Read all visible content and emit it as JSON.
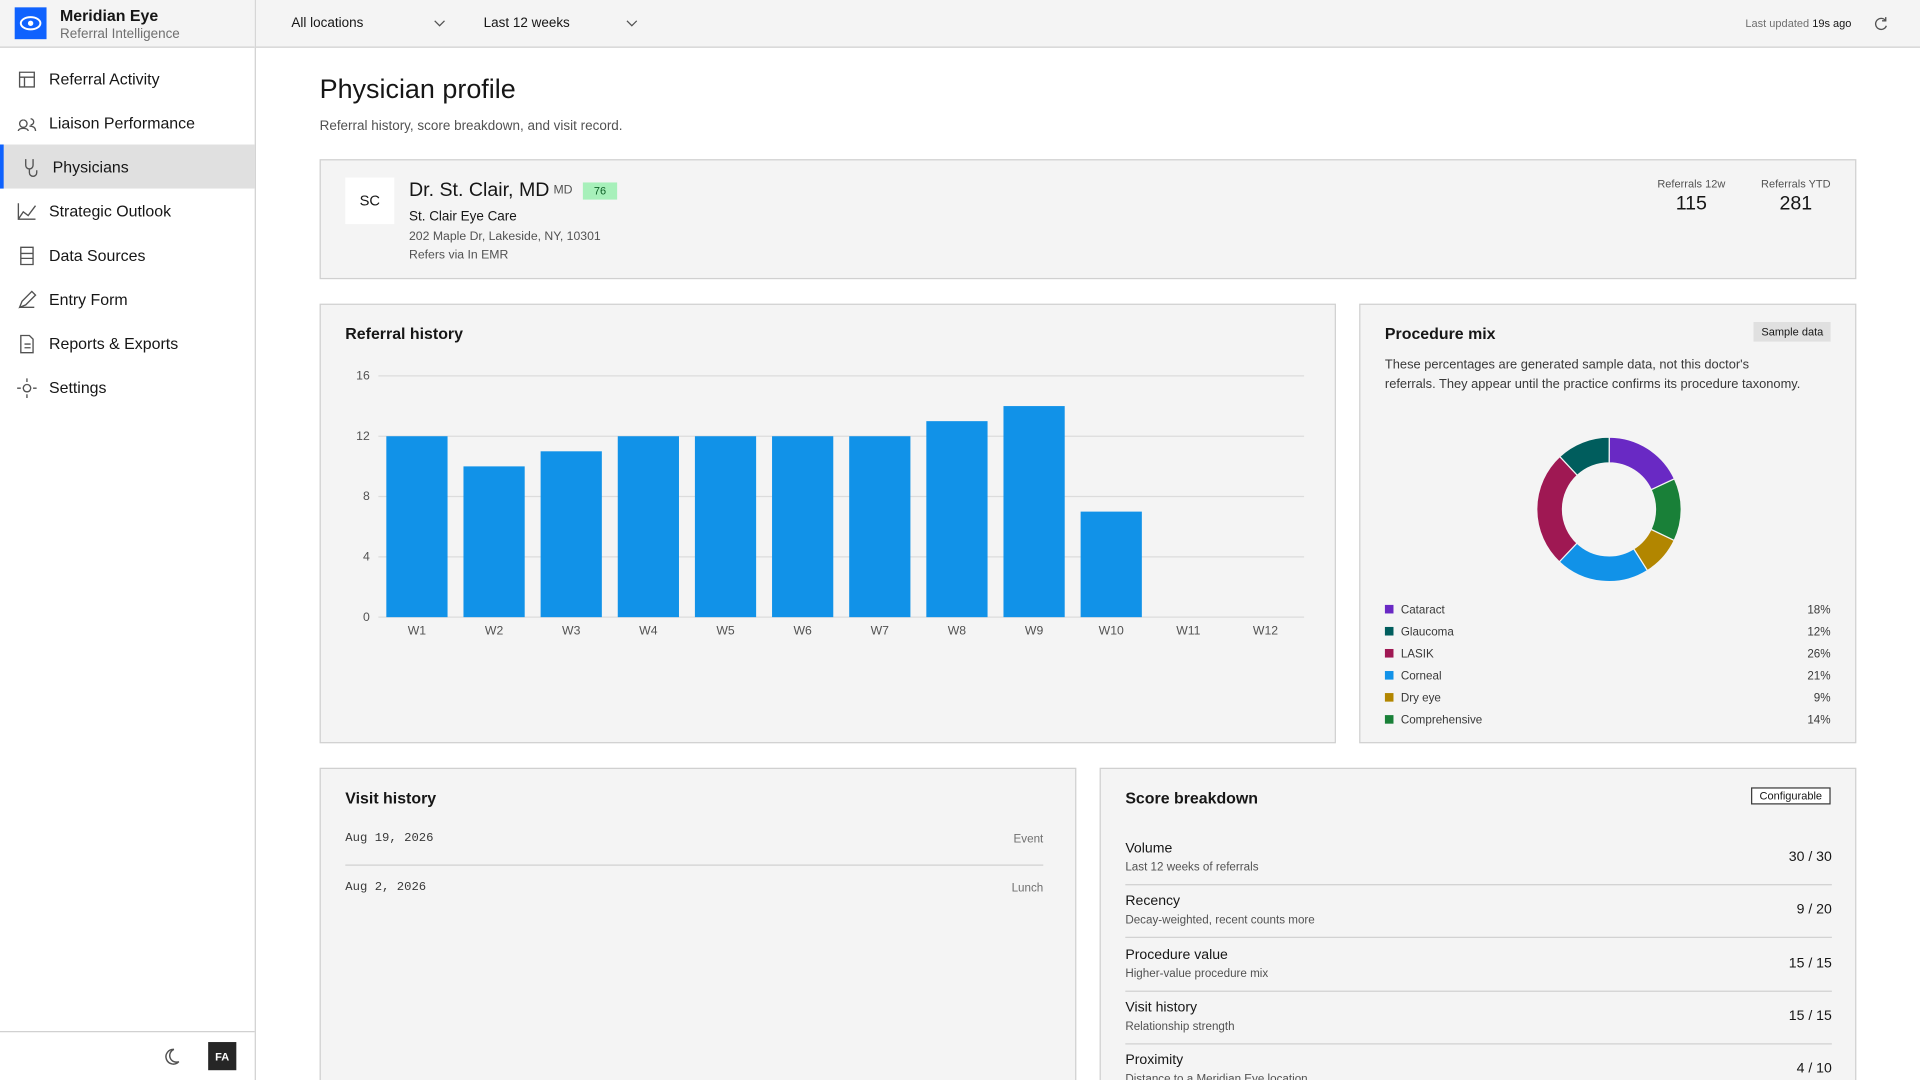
{
  "app": {
    "name": "Meridian Eye",
    "subtitle": "Referral Intelligence"
  },
  "nav": [
    "Referral Activity",
    "Liaison Performance",
    "Physicians",
    "Strategic Outlook",
    "Data Sources",
    "Entry Form",
    "Reports & Exports",
    "Settings"
  ],
  "filters": {
    "location": "All locations",
    "period": "Last 12 weeks",
    "updated_label": "Last updated",
    "updated_value": "19s ago"
  },
  "user_initials": "FA",
  "page": {
    "title": "Physician profile",
    "subtitle": "Referral history, score breakdown, and visit record."
  },
  "physician": {
    "initials": "SC",
    "name": "Dr. St. Clair, MD",
    "credential": "MD",
    "score": 76,
    "practice": "St. Clair Eye Care",
    "address": "202 Maple Dr, Lakeside, NY, 10301",
    "refers_via": "Refers via In EMR",
    "stats": [
      {
        "label": "Referrals 12w",
        "value": 115
      },
      {
        "label": "Referrals YTD",
        "value": 281
      }
    ]
  },
  "referral_history": {
    "type": "bar",
    "title": "Referral history",
    "categories": [
      "W1",
      "W2",
      "W3",
      "W4",
      "W5",
      "W6",
      "W7",
      "W8",
      "W9",
      "W10",
      "W11",
      "W12"
    ],
    "values": [
      12,
      10,
      11,
      12,
      12,
      12,
      12,
      13,
      14,
      7,
      0,
      0
    ],
    "color": "#1192e8",
    "ylim": [
      0,
      16
    ],
    "yticks": [
      0,
      4,
      8,
      12,
      16
    ],
    "grid": true
  },
  "procedure_mix": {
    "type": "pie",
    "title": "Procedure mix",
    "badge": "Sample data",
    "note": "These percentages are generated sample data, not this doctor's referrals. They appear until the practice confirms its procedure taxonomy.",
    "categories": [
      "Cataract",
      "Glaucoma",
      "LASIK",
      "Corneal",
      "Dry eye",
      "Comprehensive"
    ],
    "values": [
      18,
      12,
      26,
      21,
      9,
      14
    ],
    "value_labels": [
      "18%",
      "12%",
      "26%",
      "21%",
      "9%",
      "14%"
    ],
    "colors": [
      "#6929c4",
      "#005d5d",
      "#9f1853",
      "#1192e8",
      "#b28600",
      "#198038"
    ]
  },
  "visit_history": {
    "title": "Visit history",
    "visits": [
      {
        "date": "Aug 19, 2026",
        "type": "Event"
      },
      {
        "date": "Aug 2, 2026",
        "type": "Lunch"
      }
    ]
  },
  "score_breakdown": {
    "title": "Score breakdown",
    "badge": "Configurable",
    "items": [
      {
        "name": "Volume",
        "description": "Last 12 weeks of referrals",
        "score": "30 / 30"
      },
      {
        "name": "Recency",
        "description": "Decay-weighted, recent counts more",
        "score": "9 / 20"
      },
      {
        "name": "Procedure value",
        "description": "Higher-value procedure mix",
        "score": "15 / 15"
      },
      {
        "name": "Visit history",
        "description": "Relationship strength",
        "score": "15 / 15"
      },
      {
        "name": "Proximity",
        "description": "Distance to a Meridian Eye location",
        "score": "4 / 10"
      }
    ]
  }
}
